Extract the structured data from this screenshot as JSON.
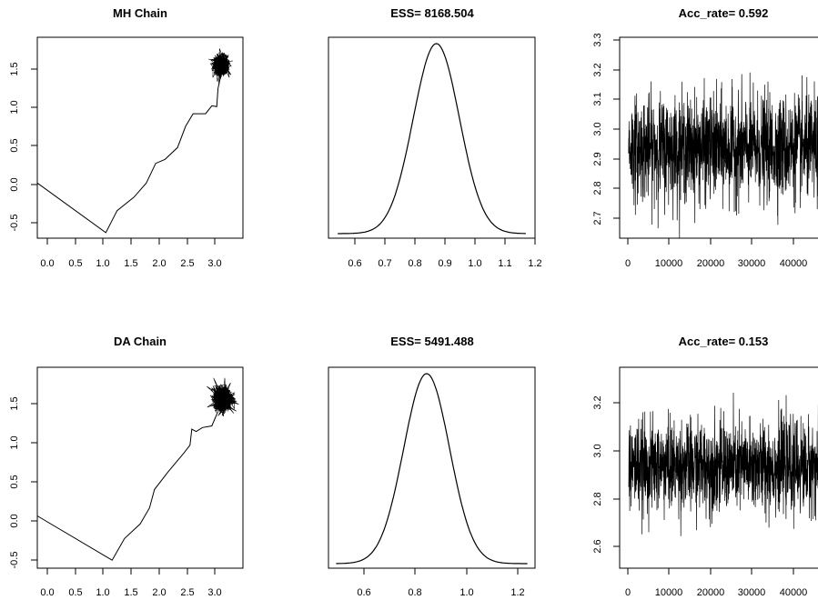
{
  "chart_data": [
    {
      "type": "line",
      "title": "MH Chain",
      "xlabel": "",
      "ylabel": "",
      "xlim": [
        0,
        3.3
      ],
      "ylim": [
        -0.7,
        1.85
      ],
      "x_ticks": [
        "0.0",
        "0.5",
        "1.0",
        "1.5",
        "2.0",
        "2.5",
        "3.0"
      ],
      "y_ticks": [
        "-0.5",
        "0.0",
        "0.5",
        "1.0",
        "1.5"
      ],
      "path": [
        [
          0.0,
          0.0
        ],
        [
          1.1,
          -0.63
        ],
        [
          1.28,
          -0.35
        ],
        [
          1.55,
          -0.18
        ],
        [
          1.75,
          0.0
        ],
        [
          1.9,
          0.25
        ],
        [
          2.05,
          0.3
        ],
        [
          2.25,
          0.45
        ],
        [
          2.38,
          0.72
        ],
        [
          2.5,
          0.88
        ],
        [
          2.7,
          0.88
        ],
        [
          2.8,
          0.98
        ],
        [
          2.88,
          0.97
        ],
        [
          2.9,
          1.2
        ],
        [
          2.95,
          1.38
        ]
      ],
      "cluster": {
        "center": [
          2.95,
          1.5
        ],
        "spread": [
          0.13,
          0.14
        ]
      }
    },
    {
      "type": "line",
      "title": "ESS= 8168.504",
      "xlabel": "",
      "ylabel": "",
      "xlim": [
        0.53,
        1.2
      ],
      "ylim": [
        0,
        1.0
      ],
      "x_ticks": [
        "0.6",
        "0.7",
        "0.8",
        "0.9",
        "1.0",
        "1.1",
        "1.2"
      ],
      "density": {
        "mean": 0.88,
        "sd": 0.075
      }
    },
    {
      "type": "line",
      "title": "Acc_rate= 0.592",
      "xlabel": "",
      "ylabel": "",
      "xlim": [
        -2000,
        46000
      ],
      "ylim": [
        2.64,
        3.31
      ],
      "x_ticks": [
        "0",
        "10000",
        "20000",
        "30000",
        "40000"
      ],
      "y_ticks": [
        "2.7",
        "2.8",
        "2.9",
        "3.0",
        "3.1",
        "3.2",
        "3.3"
      ],
      "trace": {
        "mean": 2.94,
        "sd": 0.085,
        "min": 2.64,
        "max": 3.27,
        "n_iter": 45000
      }
    },
    {
      "type": "line",
      "title": "DA Chain",
      "xlabel": "",
      "ylabel": "",
      "xlim": [
        0,
        3.3
      ],
      "ylim": [
        -0.65,
        1.85
      ],
      "x_ticks": [
        "0.0",
        "0.5",
        "1.0",
        "1.5",
        "2.0",
        "2.5",
        "3.0"
      ],
      "y_ticks": [
        "-0.5",
        "0.0",
        "0.5",
        "1.0",
        "1.5"
      ],
      "path": [
        [
          0.0,
          0.0
        ],
        [
          1.2,
          -0.55
        ],
        [
          1.4,
          -0.28
        ],
        [
          1.65,
          -0.1
        ],
        [
          1.8,
          0.1
        ],
        [
          1.88,
          0.33
        ],
        [
          2.1,
          0.55
        ],
        [
          2.35,
          0.78
        ],
        [
          2.45,
          0.88
        ],
        [
          2.48,
          1.08
        ],
        [
          2.55,
          1.05
        ],
        [
          2.65,
          1.1
        ],
        [
          2.8,
          1.12
        ],
        [
          2.9,
          1.3
        ]
      ],
      "cluster": {
        "center": [
          2.98,
          1.46
        ],
        "spread": [
          0.17,
          0.16
        ]
      }
    },
    {
      "type": "line",
      "title": "ESS= 5491.488",
      "xlabel": "",
      "ylabel": "",
      "xlim": [
        0.49,
        1.3
      ],
      "ylim": [
        0,
        1.0
      ],
      "x_ticks": [
        "0.6",
        "0.8",
        "1.0",
        "1.2"
      ],
      "density": {
        "mean": 0.875,
        "sd": 0.09
      }
    },
    {
      "type": "line",
      "title": "Acc_rate= 0.153",
      "xlabel": "",
      "ylabel": "",
      "xlim": [
        -2000,
        46000
      ],
      "ylim": [
        2.52,
        3.33
      ],
      "x_ticks": [
        "0",
        "10000",
        "20000",
        "30000",
        "40000"
      ],
      "y_ticks": [
        "2.6",
        "2.8",
        "3.0",
        "3.2"
      ],
      "trace": {
        "mean": 2.93,
        "sd": 0.09,
        "min": 2.55,
        "max": 3.3,
        "n_iter": 45000
      }
    }
  ]
}
